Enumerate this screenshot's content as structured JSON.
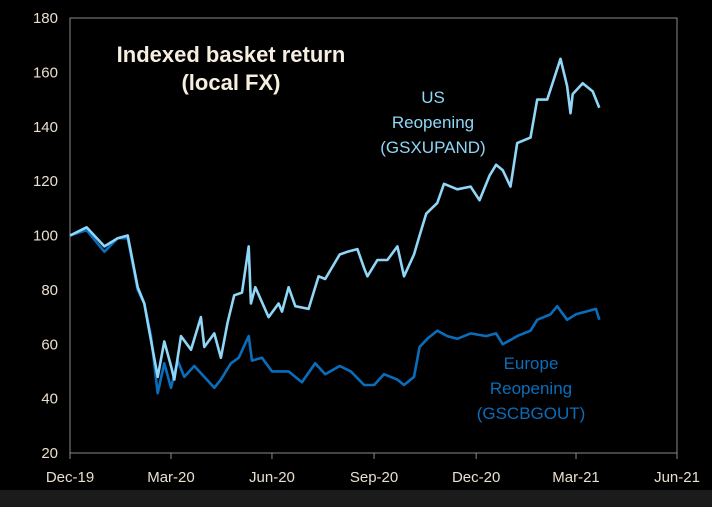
{
  "chart_data": {
    "type": "line",
    "title": [
      "Indexed basket return",
      "(local FX)"
    ],
    "xlabel": "",
    "ylabel": "",
    "ylim": [
      20,
      180
    ],
    "yticks": [
      "180",
      "160",
      "140",
      "120",
      "100",
      "80",
      "60",
      "40",
      "20"
    ],
    "xlim": [
      "2019-12-31",
      "2021-06-30"
    ],
    "xticks": [
      {
        "date": "2019-12-31",
        "label": "Dec-19"
      },
      {
        "date": "2020-03-31",
        "label": "Mar-20"
      },
      {
        "date": "2020-06-30",
        "label": "Jun-20"
      },
      {
        "date": "2020-09-30",
        "label": "Sep-20"
      },
      {
        "date": "2020-12-31",
        "label": "Dec-20"
      },
      {
        "date": "2021-03-31",
        "label": "Mar-21"
      },
      {
        "date": "2021-06-30",
        "label": "Jun-21"
      }
    ],
    "grid": false,
    "series": [
      {
        "name": "US Reopening (GSXUPAND)",
        "label_lines": [
          "US",
          "Reopening",
          "(GSXUPAND)"
        ],
        "color": "#8fd6f7",
        "points": [
          [
            "2019-12-31",
            100
          ],
          [
            "2020-01-15",
            103
          ],
          [
            "2020-01-31",
            96
          ],
          [
            "2020-02-12",
            99
          ],
          [
            "2020-02-21",
            100
          ],
          [
            "2020-03-01",
            81
          ],
          [
            "2020-03-07",
            75
          ],
          [
            "2020-03-10",
            68
          ],
          [
            "2020-03-19",
            48
          ],
          [
            "2020-03-25",
            61
          ],
          [
            "2020-03-31",
            52
          ],
          [
            "2020-04-03",
            47
          ],
          [
            "2020-04-09",
            63
          ],
          [
            "2020-04-18",
            58
          ],
          [
            "2020-04-27",
            70
          ],
          [
            "2020-04-30",
            59
          ],
          [
            "2020-05-09",
            64
          ],
          [
            "2020-05-15",
            55
          ],
          [
            "2020-05-21",
            68
          ],
          [
            "2020-05-27",
            78
          ],
          [
            "2020-06-03",
            79
          ],
          [
            "2020-06-09",
            96
          ],
          [
            "2020-06-11",
            75
          ],
          [
            "2020-06-15",
            81
          ],
          [
            "2020-06-27",
            70
          ],
          [
            "2020-07-06",
            75
          ],
          [
            "2020-07-09",
            72
          ],
          [
            "2020-07-15",
            81
          ],
          [
            "2020-07-21",
            74
          ],
          [
            "2020-08-02",
            73
          ],
          [
            "2020-08-11",
            85
          ],
          [
            "2020-08-17",
            84
          ],
          [
            "2020-08-30",
            93
          ],
          [
            "2020-09-06",
            94
          ],
          [
            "2020-09-15",
            95
          ],
          [
            "2020-09-21",
            88
          ],
          [
            "2020-09-24",
            85
          ],
          [
            "2020-10-03",
            91
          ],
          [
            "2020-10-12",
            91
          ],
          [
            "2020-10-21",
            96
          ],
          [
            "2020-10-27",
            85
          ],
          [
            "2020-11-05",
            93
          ],
          [
            "2020-11-10",
            100
          ],
          [
            "2020-11-16",
            108
          ],
          [
            "2020-11-26",
            112
          ],
          [
            "2020-12-02",
            119
          ],
          [
            "2020-12-14",
            117
          ],
          [
            "2020-12-26",
            118
          ],
          [
            "2021-01-03",
            113
          ],
          [
            "2021-01-12",
            122
          ],
          [
            "2021-01-18",
            126
          ],
          [
            "2021-01-24",
            124
          ],
          [
            "2021-01-31",
            118
          ],
          [
            "2021-02-06",
            134
          ],
          [
            "2021-02-18",
            136
          ],
          [
            "2021-02-24",
            150
          ],
          [
            "2021-03-05",
            150
          ],
          [
            "2021-03-17",
            165
          ],
          [
            "2021-03-23",
            155
          ],
          [
            "2021-03-26",
            145
          ],
          [
            "2021-03-28",
            152
          ],
          [
            "2021-04-06",
            156
          ],
          [
            "2021-04-15",
            153
          ],
          [
            "2021-04-21",
            147
          ]
        ]
      },
      {
        "name": "Europe Reopening (GSCBGOUT)",
        "label_lines": [
          "Europe",
          "Reopening",
          "(GSCBGOUT)"
        ],
        "color": "#0a6dbb",
        "points": [
          [
            "2019-12-31",
            100
          ],
          [
            "2020-01-15",
            102
          ],
          [
            "2020-01-31",
            94
          ],
          [
            "2020-02-12",
            99
          ],
          [
            "2020-02-21",
            99
          ],
          [
            "2020-03-01",
            80
          ],
          [
            "2020-03-07",
            75
          ],
          [
            "2020-03-13",
            63
          ],
          [
            "2020-03-19",
            42
          ],
          [
            "2020-03-25",
            53
          ],
          [
            "2020-03-31",
            44
          ],
          [
            "2020-04-06",
            54
          ],
          [
            "2020-04-12",
            48
          ],
          [
            "2020-04-21",
            52
          ],
          [
            "2020-04-30",
            48
          ],
          [
            "2020-05-09",
            44
          ],
          [
            "2020-05-15",
            47
          ],
          [
            "2020-05-24",
            53
          ],
          [
            "2020-05-31",
            55
          ],
          [
            "2020-06-09",
            63
          ],
          [
            "2020-06-12",
            54
          ],
          [
            "2020-06-21",
            55
          ],
          [
            "2020-06-30",
            50
          ],
          [
            "2020-07-15",
            50
          ],
          [
            "2020-07-27",
            46
          ],
          [
            "2020-08-08",
            53
          ],
          [
            "2020-08-17",
            49
          ],
          [
            "2020-08-30",
            52
          ],
          [
            "2020-09-09",
            50
          ],
          [
            "2020-09-21",
            45
          ],
          [
            "2020-09-30",
            45
          ],
          [
            "2020-10-09",
            49
          ],
          [
            "2020-10-21",
            47
          ],
          [
            "2020-10-27",
            45
          ],
          [
            "2020-11-05",
            48
          ],
          [
            "2020-11-10",
            59
          ],
          [
            "2020-11-17",
            62
          ],
          [
            "2020-11-26",
            65
          ],
          [
            "2020-12-05",
            63
          ],
          [
            "2020-12-14",
            62
          ],
          [
            "2020-12-26",
            64
          ],
          [
            "2021-01-09",
            63
          ],
          [
            "2021-01-18",
            64
          ],
          [
            "2021-01-24",
            60
          ],
          [
            "2021-02-06",
            63
          ],
          [
            "2021-02-18",
            65
          ],
          [
            "2021-02-24",
            69
          ],
          [
            "2021-03-08",
            71
          ],
          [
            "2021-03-14",
            74
          ],
          [
            "2021-03-23",
            69
          ],
          [
            "2021-03-31",
            71
          ],
          [
            "2021-04-09",
            72
          ],
          [
            "2021-04-18",
            73
          ],
          [
            "2021-04-21",
            69
          ]
        ]
      }
    ]
  }
}
